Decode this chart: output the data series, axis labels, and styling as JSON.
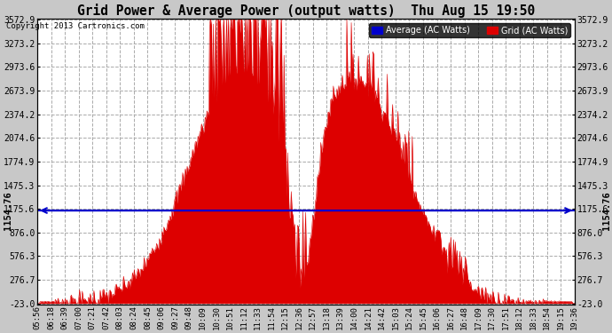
{
  "title": "Grid Power & Average Power (output watts)  Thu Aug 15 19:50",
  "copyright": "Copyright 2013 Cartronics.com",
  "average_value": 1154.76,
  "average_label": "1154.76",
  "y_min": -23.0,
  "y_max": 3572.9,
  "yticks": [
    -23.0,
    276.7,
    576.3,
    876.0,
    1175.6,
    1475.3,
    1774.9,
    2074.6,
    2374.2,
    2673.9,
    2973.6,
    3273.2,
    3572.9
  ],
  "background_color": "#c8c8c8",
  "plot_bg_color": "#ffffff",
  "fill_color": "#dd0000",
  "line_color": "#dd0000",
  "avg_line_color": "#0000cc",
  "legend_avg_color": "#0000cc",
  "legend_grid_color": "#dd0000",
  "xtick_labels": [
    "05:56",
    "06:18",
    "06:39",
    "07:00",
    "07:21",
    "07:42",
    "08:03",
    "08:24",
    "08:45",
    "09:06",
    "09:27",
    "09:48",
    "10:09",
    "10:30",
    "10:51",
    "11:12",
    "11:33",
    "11:54",
    "12:15",
    "12:36",
    "12:57",
    "13:18",
    "13:39",
    "14:00",
    "14:21",
    "14:42",
    "15:03",
    "15:24",
    "15:45",
    "16:06",
    "16:27",
    "16:48",
    "17:09",
    "17:30",
    "17:51",
    "18:12",
    "18:33",
    "18:54",
    "19:15",
    "19:36"
  ],
  "num_points": 600,
  "grid_color": "#aaaaaa",
  "grid_linestyle": "--",
  "grid_alpha": 1.0
}
